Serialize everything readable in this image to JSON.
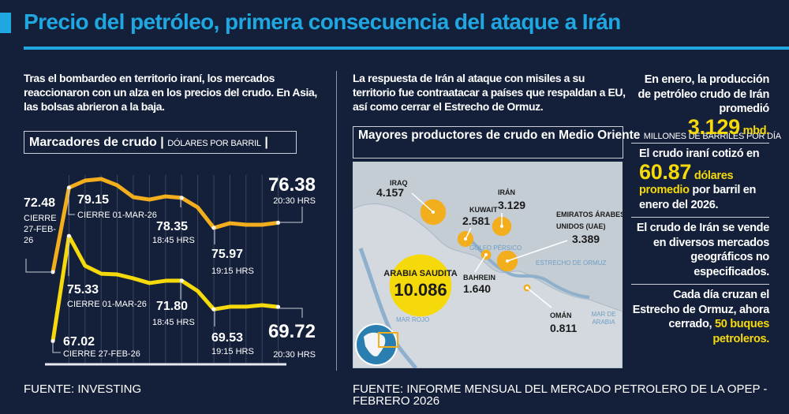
{
  "title": "Precio del petróleo, primera consecuencia del ataque a Irán",
  "left_intro": "Tras el bombardeo en territorio iraní, los mercados reaccionaron con un alza en los precios del crudo. En Asia, las bolsas abrieron a la baja.",
  "mid_intro": "La respuesta de Irán al ataque con misiles a su territorio fue contraatacar a países que respaldan a EU, así como cerrar el Estrecho de Ormuz.",
  "chart_head": {
    "title": "Marcadores de crudo",
    "unit": "DÓLARES POR BARRIL"
  },
  "chart_data": [
    {
      "type": "line",
      "title": "Marcadores de crudo",
      "ylabel": "DÓLARES POR BARRIL",
      "ylim": [
        66.5,
        80.2
      ],
      "grid": "vertical",
      "colors": {
        "upper": "#f2ae1c",
        "lower": "#f5d90a"
      },
      "series": [
        {
          "values": [
            72.48,
            79.15,
            79.71,
            79.84,
            79.34,
            78.4,
            78.21,
            78.46,
            78.35,
            77.59,
            75.97,
            76.34,
            76.22,
            76.22,
            76.38
          ]
        },
        {
          "values": [
            67.02,
            75.33,
            72.98,
            72.35,
            72.29,
            71.98,
            71.61,
            71.79,
            71.8,
            70.98,
            69.53,
            69.74,
            69.74,
            69.86,
            69.72
          ]
        }
      ],
      "annotations": [
        {
          "series": 0,
          "index": 0,
          "value": "72.48",
          "note": "CIERRE 27-FEB-26"
        },
        {
          "series": 0,
          "index": 1,
          "value": "79.15",
          "note": "CIERRE 01-MAR-26"
        },
        {
          "series": 0,
          "index": 8,
          "value": "78.35",
          "note": "18:45 HRS"
        },
        {
          "series": 0,
          "index": 10,
          "value": "75.97",
          "note": "19:15 HRS"
        },
        {
          "series": 0,
          "index": 14,
          "value": "76.38",
          "note": "20:30 HRS"
        },
        {
          "series": 1,
          "index": 0,
          "value": "67.02",
          "note": "CIERRE 27-FEB-26"
        },
        {
          "series": 1,
          "index": 1,
          "value": "75.33",
          "note": "CIERRE 01-MAR-26"
        },
        {
          "series": 1,
          "index": 8,
          "value": "71.80",
          "note": "18:45 HRS"
        },
        {
          "series": 1,
          "index": 10,
          "value": "69.53",
          "note": "19:15 HRS"
        },
        {
          "series": 1,
          "index": 14,
          "value": "69.72",
          "note": "20:30 HRS"
        }
      ]
    },
    {
      "type": "scatter",
      "title": "Mayores productores de crudo en Medio Oriente",
      "unit": "MILLONES DE BARRILES POR DÍA",
      "points": [
        {
          "label": "IRAQ",
          "value": 4.157,
          "text": "4.157"
        },
        {
          "label": "KUWAIT",
          "value": 2.581,
          "text": "2.581"
        },
        {
          "label": "IRÁN",
          "value": 3.129,
          "text": "3.129"
        },
        {
          "label": "EMIRATOS ÁRABES UNIDOS (UAE)",
          "value": 3.389,
          "text": "3.389"
        },
        {
          "label": "ARABIA SAUDITA",
          "value": 10.086,
          "text": "10.086"
        },
        {
          "label": "BAHREIN",
          "value": 1.64,
          "text": "1.640"
        },
        {
          "label": "OMÁN",
          "value": 0.811,
          "text": "0.811"
        }
      ],
      "colors": {
        "bubble": "#f2ae1c",
        "largest": "#f5d90a"
      },
      "seas": [
        "GOLFO PÉRSICO",
        "ESTRECHO DE ORMUZ",
        "MAR ROJO",
        "MAR DE ARABIA"
      ]
    }
  ],
  "map_head": {
    "title": "Mayores productores de crudo en Medio Oriente",
    "unit": "MILLONES DE BARRILES POR DÍA"
  },
  "right": {
    "b1_text": "En enero, la producción de petróleo crudo de Irán promedió",
    "b1_value": "3.129",
    "b1_unit": "mbd.",
    "b2_pre": "El crudo iraní cotizó en",
    "b2_value": "60.87",
    "b2_hl": "dólares promedio",
    "b2_post": "por barril en enero del 2026.",
    "b3_text": "El crudo de Irán se vende en diversos mercados geográficos no especificados.",
    "b4_pre": "Cada día cruzan el Estrecho de Ormuz, ahora cerrado,",
    "b4_hl": "50 buques petroleros."
  },
  "footer": {
    "left": "FUENTE: INVESTING",
    "right": "FUENTE: INFORME MENSUAL DEL MERCADO PETROLERO DE LA OPEP - FEBRERO 2026"
  }
}
